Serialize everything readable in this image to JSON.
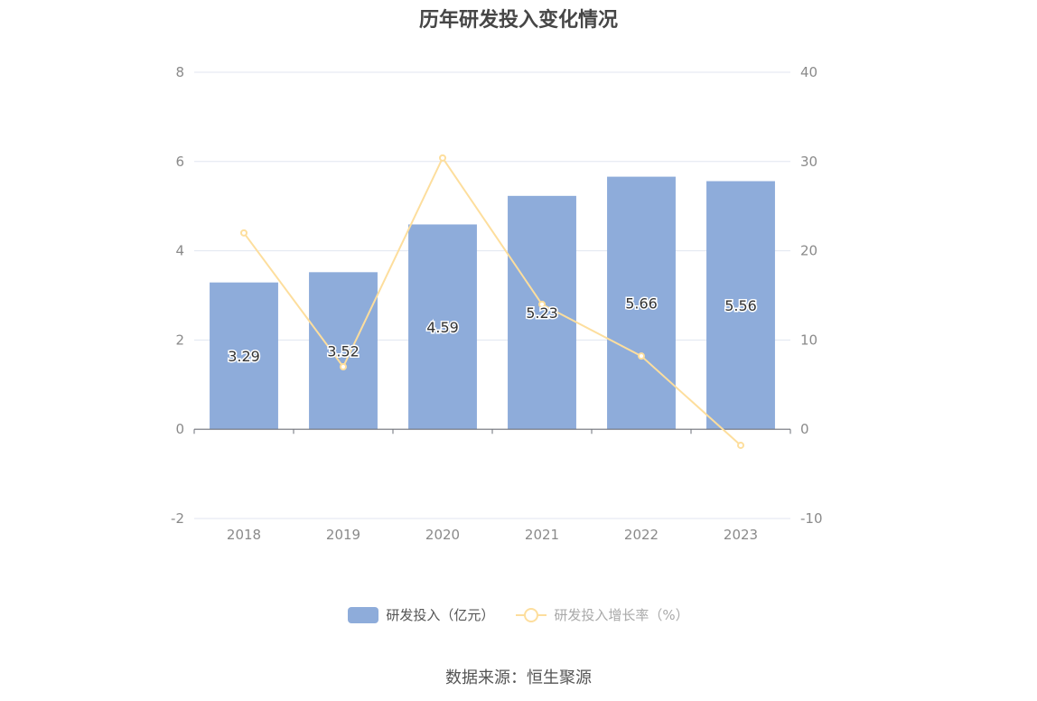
{
  "chart_data": {
    "type": "bar",
    "title": "历年研发投入变化情况",
    "categories": [
      "2018",
      "2019",
      "2020",
      "2021",
      "2022",
      "2023"
    ],
    "series": [
      {
        "name": "研发投入（亿元）",
        "type": "bar",
        "axis": "left",
        "values": [
          3.29,
          3.52,
          4.59,
          5.23,
          5.66,
          5.56
        ],
        "labels": [
          "3.29",
          "3.52",
          "4.59",
          "5.23",
          "5.66",
          "5.56"
        ],
        "color": "#8eacda"
      },
      {
        "name": "研发投入增长率（%）",
        "type": "line",
        "axis": "right",
        "values": [
          22.0,
          7.0,
          30.4,
          14.0,
          8.2,
          -1.8
        ],
        "color": "#fdde9d"
      }
    ],
    "y_left": {
      "ylim": [
        -2,
        8
      ],
      "ticks": [
        "-2",
        "0",
        "2",
        "4",
        "6",
        "8"
      ]
    },
    "y_right": {
      "ylim": [
        -10,
        40
      ],
      "ticks": [
        "-10",
        "0",
        "10",
        "20",
        "30",
        "40"
      ]
    },
    "grid": true,
    "legend_position": "bottom"
  },
  "footer": {
    "source": "数据来源：恒生聚源"
  }
}
